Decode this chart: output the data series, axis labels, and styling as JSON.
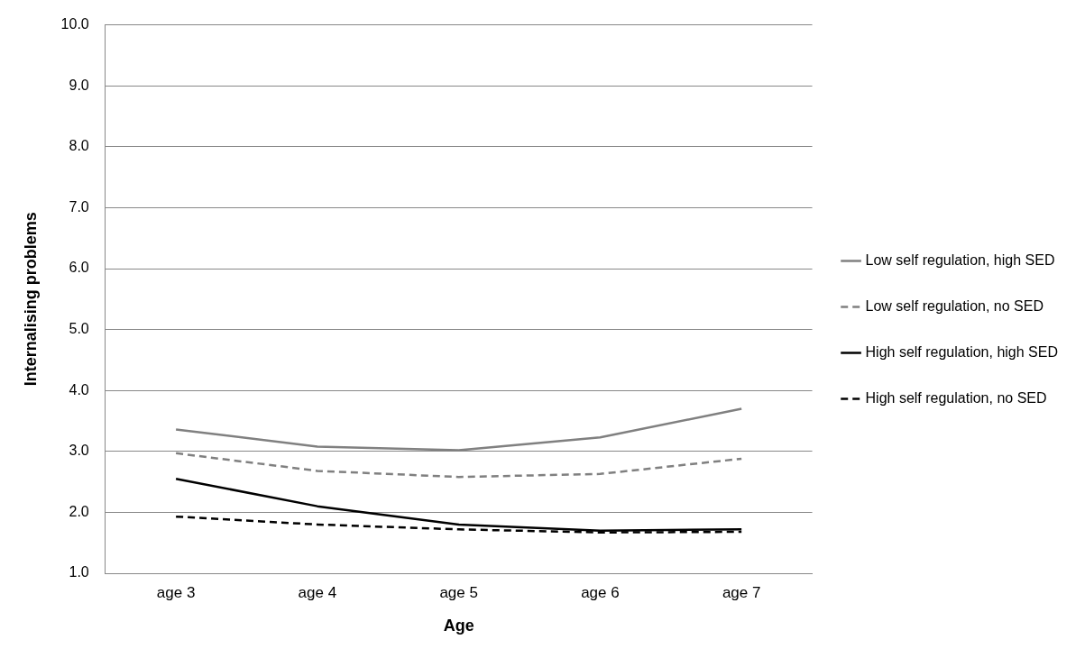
{
  "chart_data": {
    "type": "line",
    "xlabel": "Age",
    "ylabel": "Internalising problems",
    "categories": [
      "age 3",
      "age 4",
      "age 5",
      "age 6",
      "age 7"
    ],
    "series": [
      {
        "name": "Low self regulation, high SED",
        "color": "#808080",
        "line_style": "solid",
        "values": [
          3.36,
          3.08,
          3.02,
          3.23,
          3.7
        ]
      },
      {
        "name": "Low self regulation, no SED",
        "color": "#808080",
        "line_style": "dashed",
        "values": [
          2.97,
          2.68,
          2.58,
          2.63,
          2.88
        ]
      },
      {
        "name": "High self regulation, high SED",
        "color": "#000000",
        "line_style": "solid",
        "values": [
          2.55,
          2.1,
          1.8,
          1.7,
          1.72
        ]
      },
      {
        "name": "High self regulation, no SED",
        "color": "#000000",
        "line_style": "dashed",
        "values": [
          1.93,
          1.8,
          1.72,
          1.67,
          1.68
        ]
      }
    ],
    "ylim": [
      1,
      10
    ],
    "yticks": [
      {
        "value": 1,
        "label": "1.0"
      },
      {
        "value": 2,
        "label": "2.0"
      },
      {
        "value": 3,
        "label": "3.0"
      },
      {
        "value": 4,
        "label": "4.0"
      },
      {
        "value": 5,
        "label": "5.0"
      },
      {
        "value": 6,
        "label": "6.0"
      },
      {
        "value": 7,
        "label": "7.0"
      },
      {
        "value": 8,
        "label": "8.0"
      },
      {
        "value": 9,
        "label": "9.0"
      },
      {
        "value": 10,
        "label": "10.0"
      }
    ],
    "grid": "y",
    "legend": "right",
    "marker": "none"
  }
}
